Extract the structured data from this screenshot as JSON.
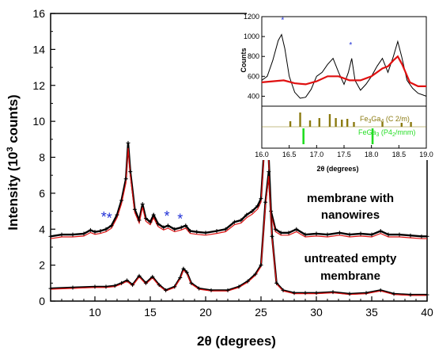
{
  "chart_data": [
    {
      "type": "line",
      "xlabel_prefix": "2θ",
      "xlabel_suffix": " (degrees)",
      "ylabel_prefix": "Intensity (10",
      "ylabel_sup": "3",
      "ylabel_suffix": " counts)",
      "xlim": [
        6,
        40
      ],
      "ylim": [
        0,
        16
      ],
      "xticks": [
        "10",
        "15",
        "20",
        "25",
        "30",
        "35",
        "40"
      ],
      "yticks": [
        "0",
        "2",
        "4",
        "6",
        "8",
        "10",
        "12",
        "14",
        "16"
      ],
      "annotations": {
        "membrane_nanowires": [
          "membrane with",
          "nanowires"
        ],
        "untreated_membrane": [
          "untreated empty",
          "membrane"
        ]
      },
      "star_marker": "*",
      "star_positions": [
        [
          10.8,
          4.75
        ],
        [
          11.3,
          4.7
        ],
        [
          16.5,
          4.8
        ],
        [
          17.7,
          4.65
        ]
      ],
      "colors": {
        "observed": "#000000",
        "fit": "#e01010",
        "star": "#1f2fd6"
      },
      "series": [
        {
          "x": [
            6,
            7,
            8,
            9,
            9.6,
            10,
            10.5,
            11,
            11.5,
            12,
            12.4,
            12.8,
            13.0,
            13.2,
            13.6,
            14.0,
            14.3,
            14.6,
            15.0,
            15.3,
            15.7,
            16.2,
            16.6,
            17.2,
            17.8,
            18.2,
            18.6,
            19.2,
            20,
            21,
            21.8,
            22.6,
            23.2,
            23.7,
            24.2,
            24.7,
            25.0,
            25.3,
            25.6,
            25.9,
            26.3,
            26.8,
            27.5,
            28.2,
            29,
            30,
            31,
            32.1,
            33,
            34,
            35,
            35.8,
            36.5,
            37.5,
            38.5,
            39.5,
            40
          ],
          "y": [
            3.6,
            3.7,
            3.7,
            3.75,
            3.95,
            3.85,
            3.9,
            4.0,
            4.2,
            4.8,
            5.6,
            6.8,
            8.8,
            7.2,
            5.1,
            4.5,
            5.4,
            4.6,
            4.4,
            4.8,
            4.3,
            4.1,
            4.2,
            4.0,
            4.1,
            4.2,
            3.9,
            3.85,
            3.8,
            3.9,
            4.0,
            4.4,
            4.5,
            4.8,
            5.0,
            5.3,
            5.7,
            8.6,
            9.4,
            5.0,
            4.0,
            3.8,
            3.8,
            4.0,
            3.7,
            3.75,
            3.7,
            3.8,
            3.7,
            3.75,
            3.7,
            3.9,
            3.7,
            3.7,
            3.65,
            3.6,
            3.6
          ]
        },
        {
          "x": [
            6,
            8,
            10,
            11,
            11.8,
            12.4,
            12.9,
            13.4,
            14.0,
            14.6,
            15.2,
            15.8,
            16.4,
            17.2,
            17.7,
            18.0,
            18.3,
            18.7,
            19.4,
            20.5,
            22,
            23,
            23.8,
            24.5,
            25.0,
            25.4,
            25.7,
            26.0,
            26.4,
            27,
            28,
            29,
            30,
            31.5,
            33,
            34.5,
            35.8,
            37,
            38.5,
            40
          ],
          "y": [
            0.7,
            0.75,
            0.8,
            0.8,
            0.85,
            1.0,
            1.15,
            0.9,
            1.4,
            1.0,
            1.35,
            0.9,
            0.6,
            0.8,
            1.3,
            1.8,
            1.6,
            1.0,
            0.7,
            0.6,
            0.6,
            0.8,
            1.1,
            1.5,
            2.0,
            5.5,
            7.2,
            3.6,
            1.0,
            0.6,
            0.45,
            0.45,
            0.45,
            0.5,
            0.4,
            0.45,
            0.6,
            0.4,
            0.35,
            0.35
          ]
        }
      ]
    },
    {
      "type": "line",
      "ylabel": "Counts",
      "xlabel_prefix": "2θ",
      "xlabel_suffix": " (degrees)",
      "xlim": [
        16.0,
        19.0
      ],
      "ylim": [
        300,
        1200
      ],
      "xticks": [
        "16.0",
        "16.5",
        "17.0",
        "17.5",
        "18.0",
        "18.5",
        "19.0"
      ],
      "yticks": [
        "400",
        "600",
        "800",
        "1000",
        "1200"
      ],
      "star_marker": "*",
      "star_positions": [
        [
          16.38,
          1180
        ],
        [
          17.62,
          930
        ]
      ],
      "observed": {
        "x": [
          16.0,
          16.1,
          16.2,
          16.3,
          16.36,
          16.42,
          16.5,
          16.6,
          16.7,
          16.8,
          16.9,
          17.0,
          17.1,
          17.2,
          17.3,
          17.4,
          17.5,
          17.58,
          17.64,
          17.7,
          17.8,
          17.9,
          18.0,
          18.1,
          18.2,
          18.3,
          18.4,
          18.48,
          18.55,
          18.65,
          18.75,
          18.85,
          19.0
        ],
        "y": [
          560,
          600,
          760,
          960,
          1020,
          880,
          600,
          440,
          380,
          390,
          470,
          600,
          640,
          720,
          780,
          640,
          520,
          640,
          780,
          560,
          460,
          520,
          600,
          700,
          780,
          640,
          800,
          950,
          800,
          560,
          480,
          430,
          400
        ]
      },
      "fit": {
        "x": [
          16.0,
          16.2,
          16.4,
          16.6,
          16.8,
          17.0,
          17.2,
          17.4,
          17.6,
          17.8,
          18.0,
          18.2,
          18.3,
          18.4,
          18.48,
          18.56,
          18.7,
          18.85,
          19.0
        ],
        "y": [
          540,
          550,
          560,
          530,
          520,
          550,
          600,
          600,
          560,
          560,
          600,
          680,
          700,
          760,
          800,
          720,
          540,
          500,
          500
        ]
      },
      "legend": [
        {
          "label_prefix": "Fe",
          "label_sub": "3",
          "label_mid": "Ga",
          "label_sub2": "4",
          "label_suffix": " (C 2/m)",
          "color": "#8b7a10"
        },
        {
          "label_prefix": "FeGa",
          "label_sub": "3",
          "label_mid": " (P4",
          "label_sub2": "2",
          "label_suffix": "/mnm)",
          "color": "#22dd22"
        }
      ],
      "reflections_fe3ga4": [
        16.52,
        16.7,
        16.88,
        17.05,
        17.24,
        17.35,
        17.46,
        17.56,
        17.68,
        18.2,
        18.55,
        18.72
      ],
      "reflections_fe3ga4_h": [
        0.35,
        0.9,
        0.4,
        0.55,
        0.8,
        0.55,
        0.45,
        0.5,
        0.3,
        0.3,
        0.25,
        0.3
      ],
      "reflections_fega3": [
        16.76,
        18.02
      ]
    }
  ]
}
